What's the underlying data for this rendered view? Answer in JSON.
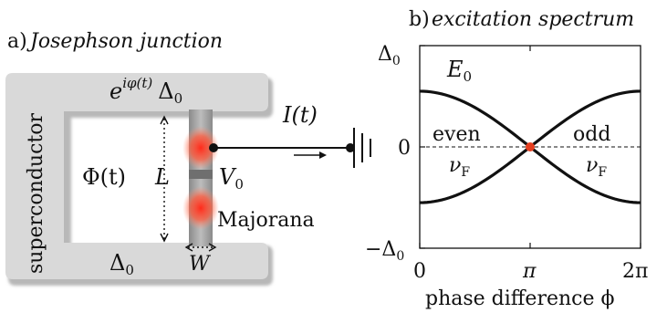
{
  "panel_a": {
    "panel_label": "a)",
    "title": "Josephson junction",
    "superconductor_label": "superconductor",
    "top_gap_label_base": "e",
    "top_gap_label_exp": "iφ(t)",
    "top_gap_label_delta": "Δ",
    "top_gap_label_sub": "0",
    "flux_label": "Φ(t)",
    "length_label": "L",
    "voltage_label": "V",
    "voltage_sub": "0",
    "majorana_label": "Majorana",
    "bottom_gap_label": "Δ",
    "bottom_gap_sub": "0",
    "width_label": "W",
    "current_label": "I(t)"
  },
  "panel_b": {
    "panel_label": "b)",
    "title": "excitation spectrum",
    "energy_label": "E",
    "energy_sub": "0",
    "even_label": "even",
    "odd_label": "odd",
    "nu_label": "ν",
    "nu_sub": "F"
  },
  "chart_data": {
    "type": "line",
    "title": "excitation spectrum",
    "xlabel": "phase difference ϕ",
    "ylabel": "",
    "x_ticks": [
      "0",
      "π",
      "2π"
    ],
    "y_ticks": [
      "−Δ0",
      "0",
      "Δ0"
    ],
    "xlim": [
      0,
      6.2832
    ],
    "ylim": [
      -1,
      1
    ],
    "series": [
      {
        "name": "E0",
        "function": "0.55*cos(phi/2)",
        "samples": 61
      },
      {
        "name": "",
        "function": "-0.55*cos(phi/2)",
        "samples": 61
      }
    ],
    "zero_line": "dashed",
    "crossing_point": {
      "x": 3.1416,
      "y": 0,
      "color": "#e53e1f"
    }
  }
}
